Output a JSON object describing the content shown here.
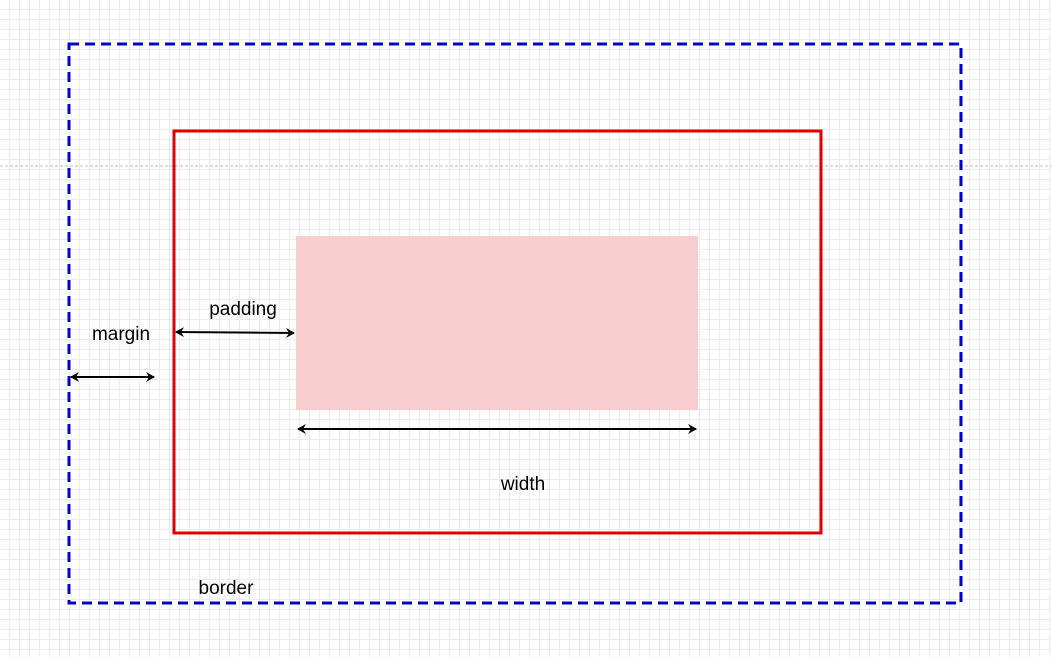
{
  "diagram": {
    "labels": {
      "margin": "margin",
      "padding": "padding",
      "width": "width",
      "border": "border"
    },
    "colors": {
      "outer_dashed_box": "#0000cc",
      "border_box": "#e00000",
      "content_fill": "#f8cecc",
      "arrows": "#000000",
      "guide_line": "#bbbbbb",
      "grid": "#ececec"
    }
  }
}
